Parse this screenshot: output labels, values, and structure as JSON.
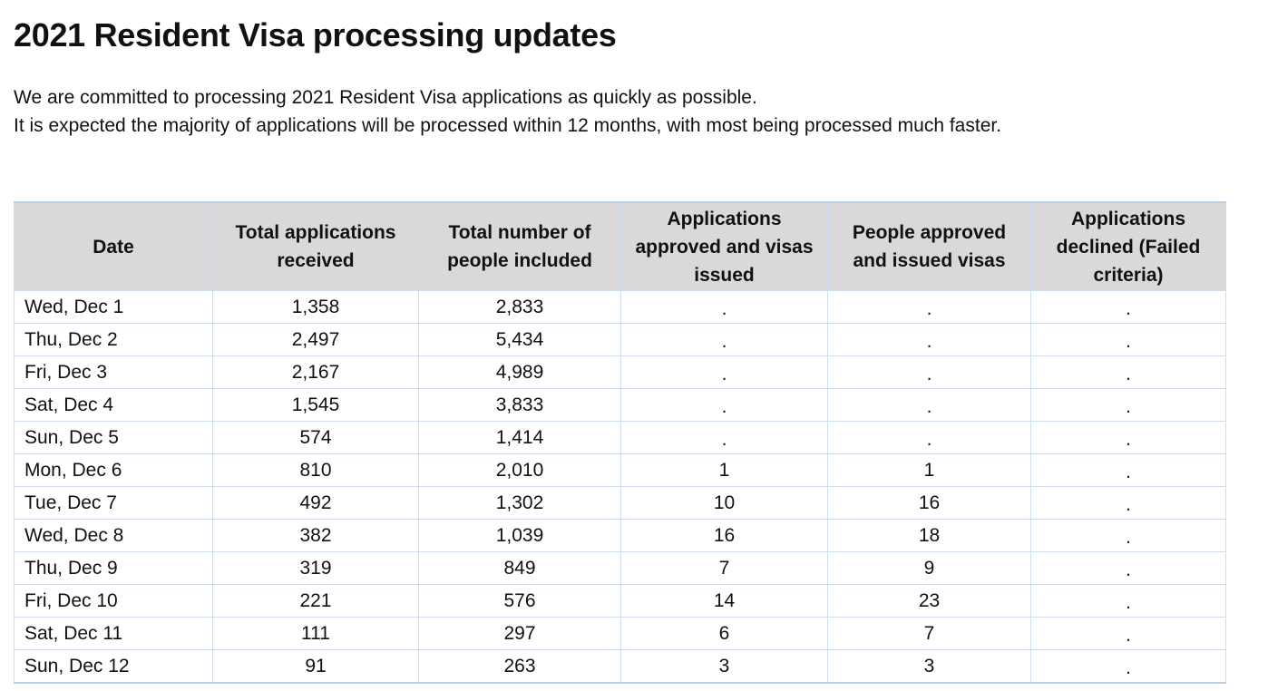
{
  "page": {
    "title": "2021 Resident Visa processing updates",
    "intro": [
      "We are committed to processing 2021 Resident Visa applications as quickly as possible.",
      "It is expected the majority of applications will be processed within 12 months, with most being processed much faster."
    ]
  },
  "table": {
    "headers": [
      "Date",
      "Total applications received",
      "Total number of people included",
      "Applications approved and visas issued",
      "People approved and issued visas",
      "Applications declined (Failed criteria)"
    ],
    "rows": [
      [
        "Wed, Dec 1",
        "1,358",
        "2,833",
        ".",
        ".",
        "."
      ],
      [
        "Thu, Dec 2",
        "2,497",
        "5,434",
        ".",
        ".",
        "."
      ],
      [
        "Fri, Dec 3",
        "2,167",
        "4,989",
        ".",
        ".",
        "."
      ],
      [
        "Sat, Dec 4",
        "1,545",
        "3,833",
        ".",
        ".",
        "."
      ],
      [
        "Sun, Dec 5",
        "574",
        "1,414",
        ".",
        ".",
        "."
      ],
      [
        "Mon, Dec 6",
        "810",
        "2,010",
        "1",
        "1",
        "."
      ],
      [
        "Tue, Dec 7",
        "492",
        "1,302",
        "10",
        "16",
        "."
      ],
      [
        "Wed, Dec 8",
        "382",
        "1,039",
        "16",
        "18",
        "."
      ],
      [
        "Thu, Dec 9",
        "319",
        "849",
        "7",
        "9",
        "."
      ],
      [
        "Fri, Dec 10",
        "221",
        "576",
        "14",
        "23",
        "."
      ],
      [
        "Sat, Dec 11",
        "111",
        "297",
        "6",
        "7",
        "."
      ],
      [
        "Sun, Dec 12",
        "91",
        "263",
        "3",
        "3",
        "."
      ]
    ]
  },
  "colors": {
    "header_background": "#d9d9d9",
    "grid_line": "#cfdcec"
  }
}
